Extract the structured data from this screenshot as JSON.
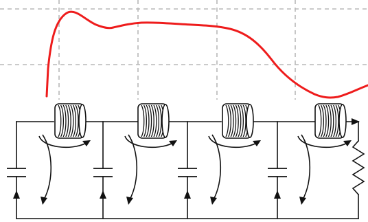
{
  "diagram": {
    "description_visible_text": "",
    "colors": {
      "trace": "#ee1c1c",
      "grid": "#b8b8b8",
      "wire": "#111111",
      "background": "#ffffff"
    },
    "stages": [
      {
        "id": "stage-1",
        "components": [
          "capacitor",
          "inductor"
        ]
      },
      {
        "id": "stage-2",
        "components": [
          "capacitor",
          "inductor"
        ]
      },
      {
        "id": "stage-3",
        "components": [
          "capacitor",
          "inductor"
        ]
      },
      {
        "id": "stage-4",
        "components": [
          "capacitor",
          "inductor",
          "resistor"
        ]
      }
    ],
    "icons": [
      "capacitor-icon",
      "inductor-coil-icon",
      "resistor-icon",
      "current-flow-arrow-icon"
    ]
  }
}
